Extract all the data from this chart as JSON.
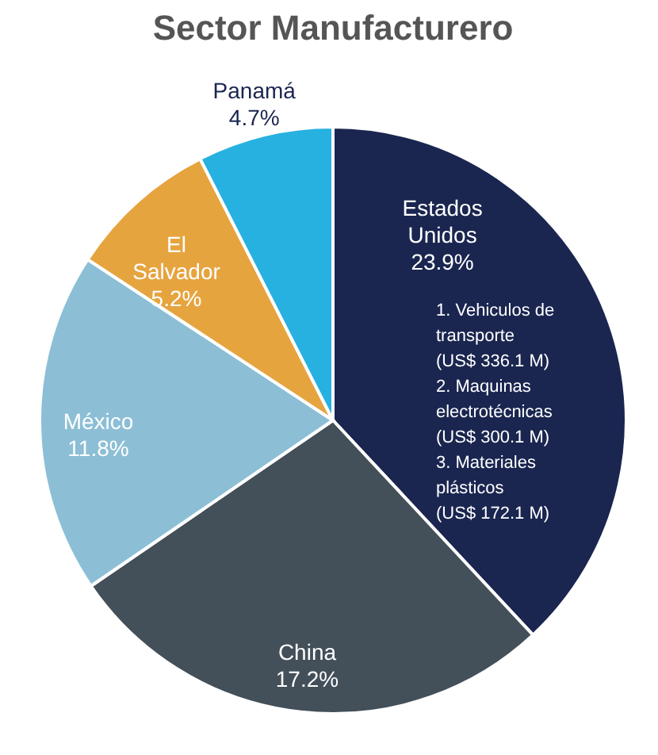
{
  "chart_data": {
    "type": "pie",
    "title": "Sector Manufacturero",
    "categories": [
      "Estados Unidos",
      "China",
      "México",
      "El Salvador",
      "Panamá"
    ],
    "values": [
      23.9,
      17.2,
      11.8,
      5.2,
      4.7
    ],
    "colors": [
      "#1a2650",
      "#434f59",
      "#8cbfd6",
      "#e6a43f",
      "#27b1e1"
    ],
    "value_labels": [
      "23.9%",
      "17.2%",
      "11.8%",
      "5.2%",
      "4.7%"
    ],
    "annotations": [
      "1. Vehiculos de",
      "transporte",
      "(US$ 336.1 M)",
      "2. Maquinas",
      "electrotécnicas",
      "(US$ 300.1 M)",
      "3. Materiales",
      "plásticos",
      "(US$ 172.1 M)"
    ]
  }
}
